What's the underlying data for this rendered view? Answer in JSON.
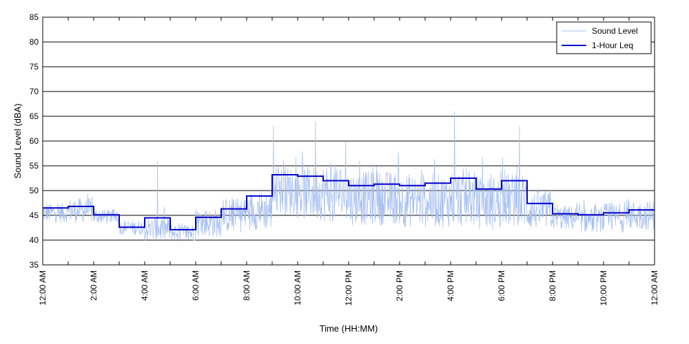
{
  "chart_data": {
    "type": "line",
    "title": "",
    "xlabel": "Time (HH:MM)",
    "ylabel": "Sound Level (dBA)",
    "x_unit": "hours",
    "xlim": [
      0,
      24
    ],
    "ylim": [
      35,
      85
    ],
    "y_ticks": [
      35,
      40,
      45,
      50,
      55,
      60,
      65,
      70,
      75,
      80,
      85
    ],
    "x_ticks": [
      0,
      2,
      4,
      6,
      8,
      10,
      12,
      14,
      16,
      18,
      20,
      22,
      24
    ],
    "x_tick_labels": [
      "12:00 AM",
      "2:00 AM",
      "4:00 AM",
      "6:00 AM",
      "8:00 AM",
      "10:00 AM",
      "12:00 PM",
      "2:00 PM",
      "4:00 PM",
      "6:00 PM",
      "8:00 PM",
      "10:00 PM",
      "12:00 AM"
    ],
    "x_minor_ticks": [
      1,
      3,
      5,
      7,
      9,
      11,
      13,
      15,
      17,
      19,
      21,
      23
    ],
    "grid": "horizontal",
    "legend": {
      "position": "top-right"
    },
    "series": [
      {
        "name": "Sound Level",
        "color": "#a8c0f0",
        "style": "thin",
        "hourly_base": [
          45.5,
          46.0,
          44.8,
          42.5,
          42.2,
          41.5,
          43.5,
          45.0,
          46.0,
          50.0,
          49.5,
          49.5,
          48.5,
          48.5,
          48.0,
          48.0,
          48.5,
          47.5,
          48.0,
          46.0,
          44.5,
          44.0,
          44.5,
          45.0
        ],
        "hourly_spread": [
          2.0,
          2.5,
          1.5,
          1.5,
          2.5,
          2.0,
          3.0,
          3.5,
          4.0,
          5.0,
          5.5,
          6.0,
          5.5,
          5.5,
          5.5,
          5.5,
          6.0,
          5.5,
          5.5,
          4.0,
          2.5,
          2.5,
          3.0,
          3.0
        ],
        "peaks": [
          {
            "x": 4.5,
            "y": 56
          },
          {
            "x": 9.05,
            "y": 63
          },
          {
            "x": 10.7,
            "y": 64
          },
          {
            "x": 16.15,
            "y": 66
          },
          {
            "x": 18.7,
            "y": 63
          }
        ]
      },
      {
        "name": "1-Hour Leq",
        "color": "#0000cc",
        "style": "step",
        "values": [
          46.5,
          46.8,
          45.1,
          42.6,
          44.5,
          42.1,
          44.6,
          46.3,
          48.9,
          53.2,
          52.9,
          52.0,
          51.0,
          51.3,
          51.0,
          51.5,
          52.5,
          50.3,
          52.0,
          47.4,
          45.3,
          45.1,
          45.5,
          46.1
        ]
      }
    ]
  }
}
